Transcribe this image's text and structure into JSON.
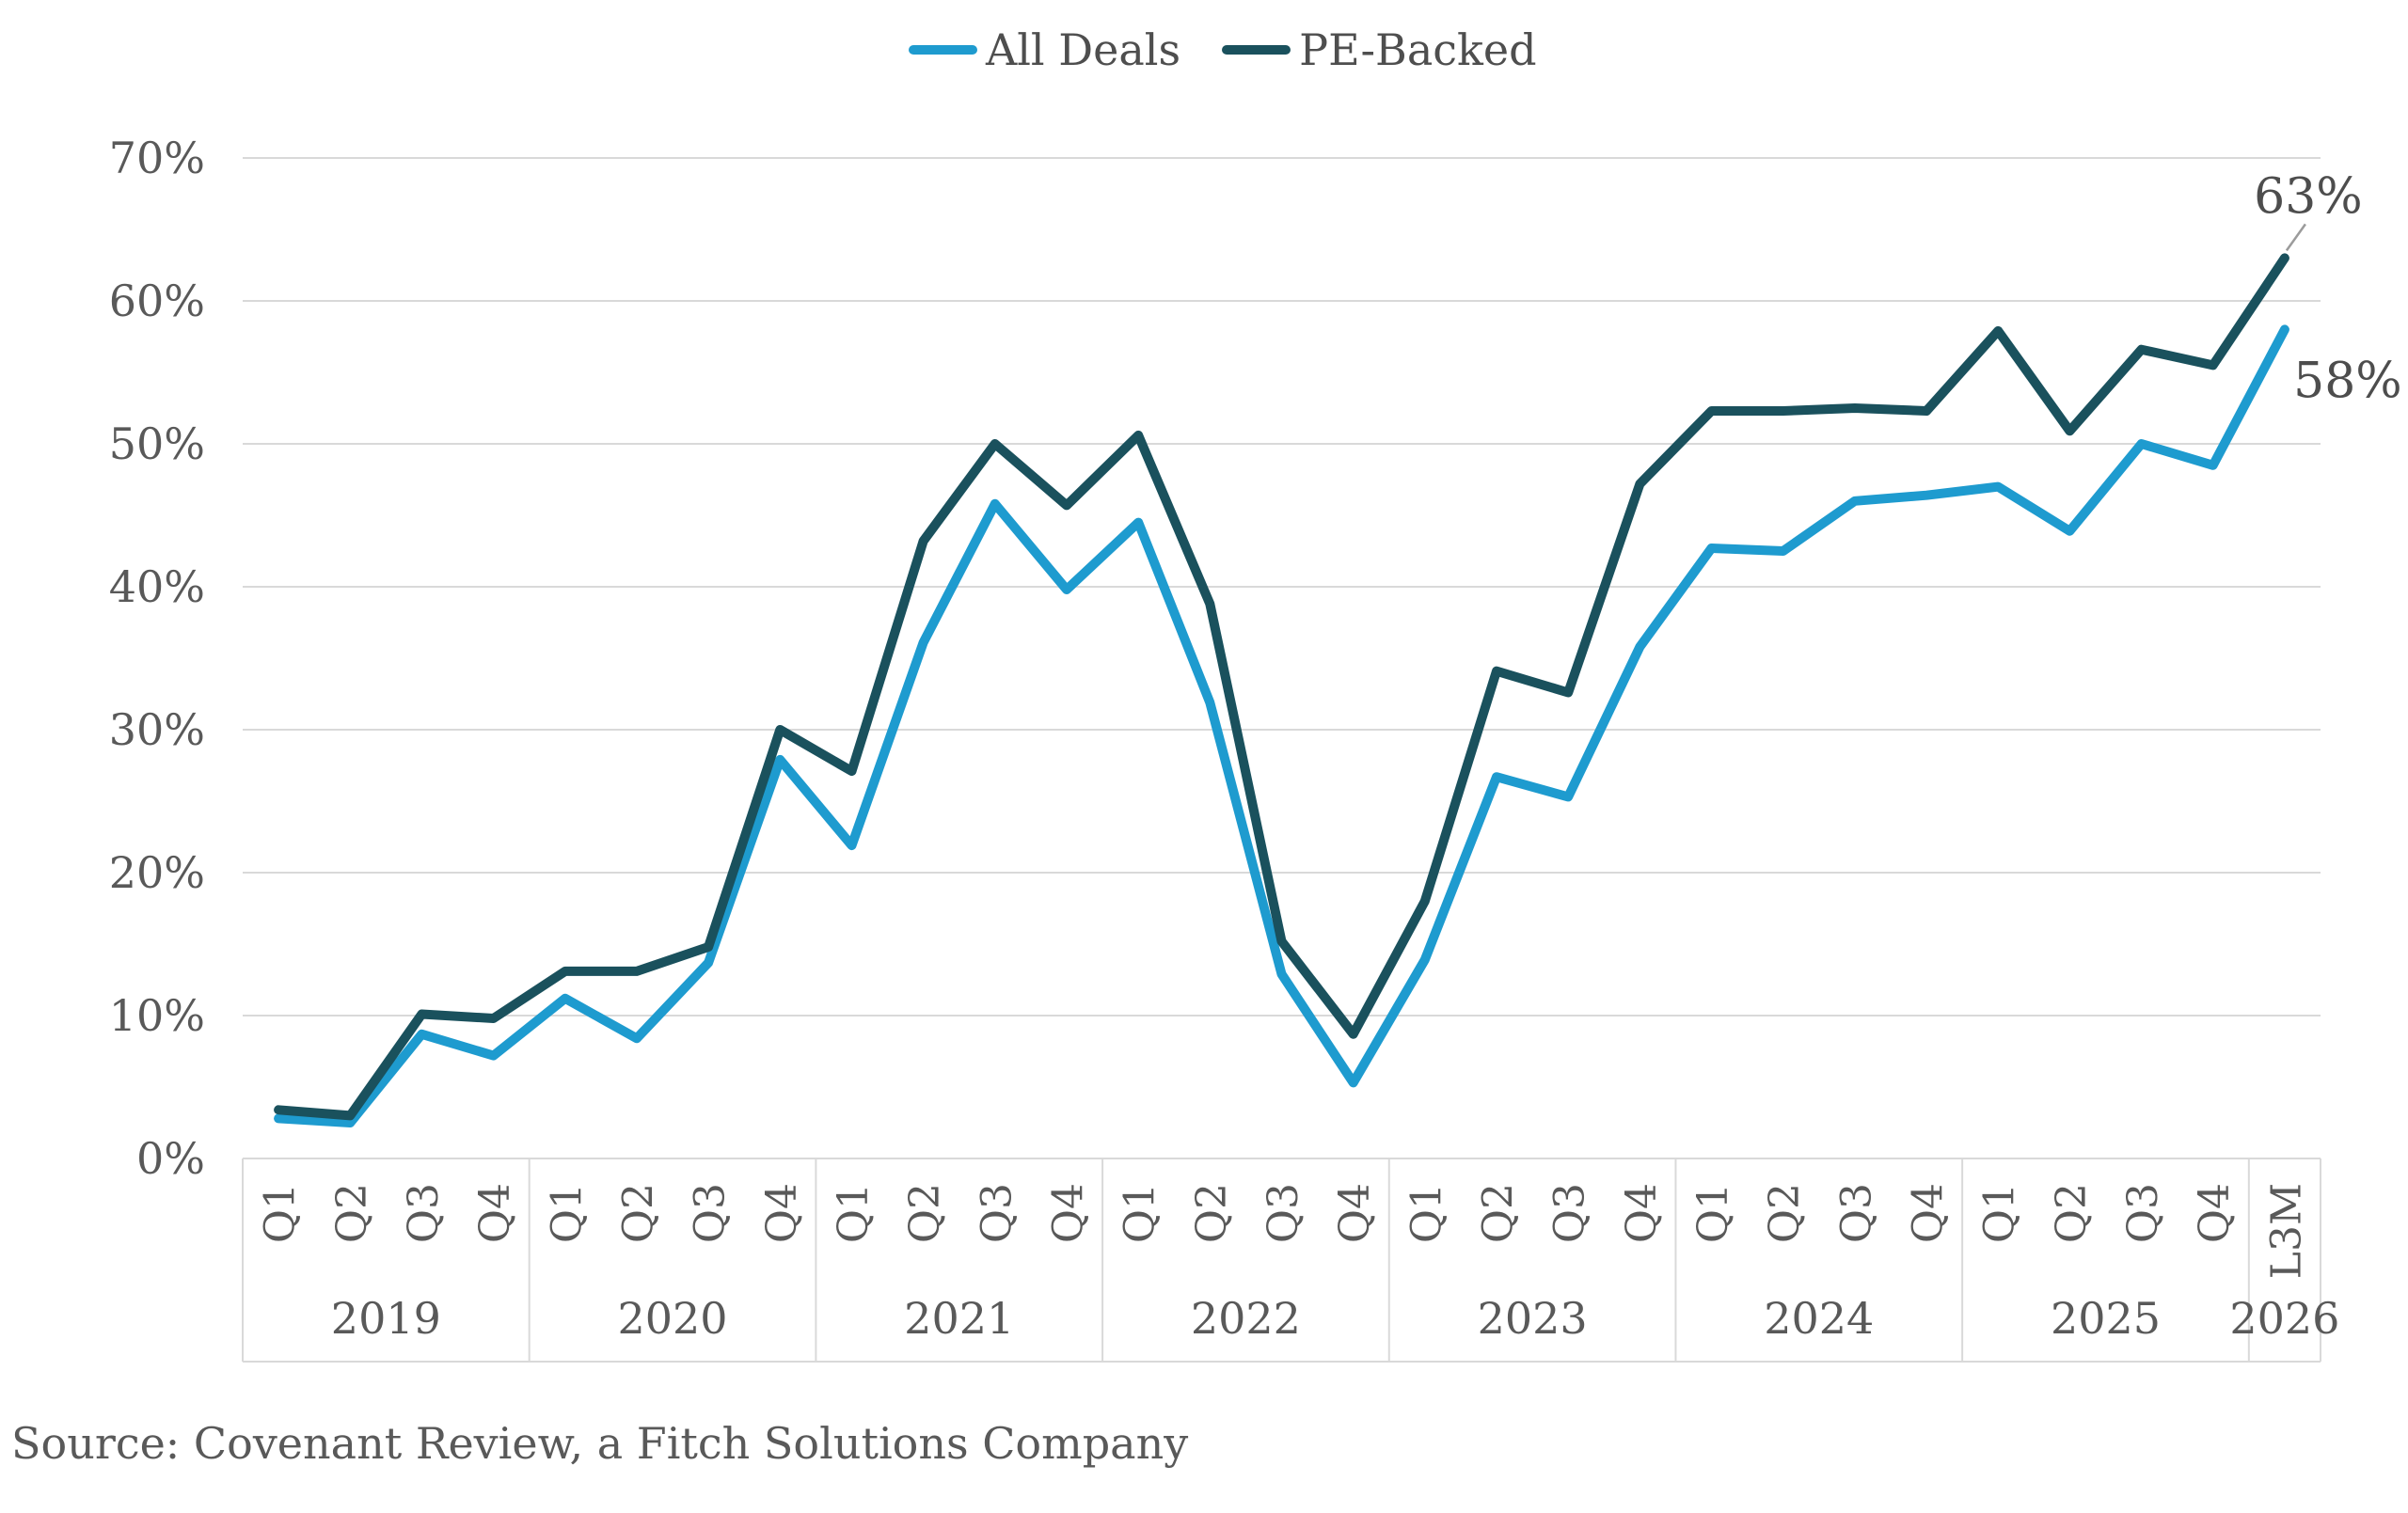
{
  "legend": {
    "items": [
      {
        "label": "All Deals",
        "color": "#1E9BCF"
      },
      {
        "label": "PE-Backed",
        "color": "#1A515D"
      }
    ]
  },
  "source": "Source: Covenant Review, a Fitch Solutions Company",
  "colors": {
    "grid": "#D9D9D9",
    "axis_text": "#595959",
    "legend_text": "#4E4E4E",
    "annotation_text": "#4D4D4D",
    "leader_line": "#9B9B9B",
    "background": "#FFFFFF",
    "all_deals": "#1E9BCF",
    "pe_backed": "#1A515D"
  },
  "chart_data": {
    "type": "line",
    "title": "",
    "xlabel": "",
    "ylabel": "",
    "x_labels": [
      "Q1",
      "Q2",
      "Q3",
      "Q4",
      "Q1",
      "Q2",
      "Q3",
      "Q4",
      "Q1",
      "Q2",
      "Q3",
      "Q4",
      "Q1",
      "Q2",
      "Q3",
      "Q4",
      "Q1",
      "Q2",
      "Q3",
      "Q4",
      "Q1",
      "Q2",
      "Q3",
      "Q4",
      "Q1",
      "Q2",
      "Q3",
      "Q4",
      "L3M"
    ],
    "year_groups": [
      {
        "label": "2019",
        "count": 4
      },
      {
        "label": "2020",
        "count": 4
      },
      {
        "label": "2021",
        "count": 4
      },
      {
        "label": "2022",
        "count": 4
      },
      {
        "label": "2023",
        "count": 4
      },
      {
        "label": "2024",
        "count": 4
      },
      {
        "label": "2025",
        "count": 4
      },
      {
        "label": "2026",
        "count": 1
      }
    ],
    "series": [
      {
        "name": "All Deals",
        "color": "#1E9BCF",
        "values": [
          2.8,
          2.5,
          8.7,
          7.2,
          11.2,
          8.4,
          13.7,
          27.9,
          21.9,
          36.1,
          45.8,
          39.8,
          44.5,
          31.9,
          12.9,
          5.3,
          13.9,
          26.7,
          25.3,
          35.8,
          42.7,
          42.5,
          46.0,
          46.4,
          47.0,
          43.9,
          50.0,
          48.5,
          58.0
        ]
      },
      {
        "name": "PE-Backed",
        "color": "#1A515D",
        "values": [
          3.4,
          3.0,
          10.1,
          9.8,
          13.1,
          13.1,
          14.8,
          30.0,
          27.1,
          43.2,
          50.0,
          45.7,
          50.6,
          38.8,
          15.2,
          8.7,
          18.0,
          34.1,
          32.6,
          47.2,
          52.3,
          52.3,
          52.5,
          52.3,
          57.9,
          50.9,
          56.6,
          55.5,
          63.0
        ]
      }
    ],
    "ylim": [
      0,
      70
    ],
    "y_ticks": [
      "0%",
      "10%",
      "20%",
      "30%",
      "40%",
      "50%",
      "60%",
      "70%"
    ],
    "grid": "horizontal",
    "legend_position": "top",
    "annotations": [
      {
        "text": "63%",
        "series": "PE-Backed",
        "point": "last",
        "leader_line": true
      },
      {
        "text": "58%",
        "series": "All Deals",
        "point": "last",
        "leader_line": false
      }
    ]
  }
}
